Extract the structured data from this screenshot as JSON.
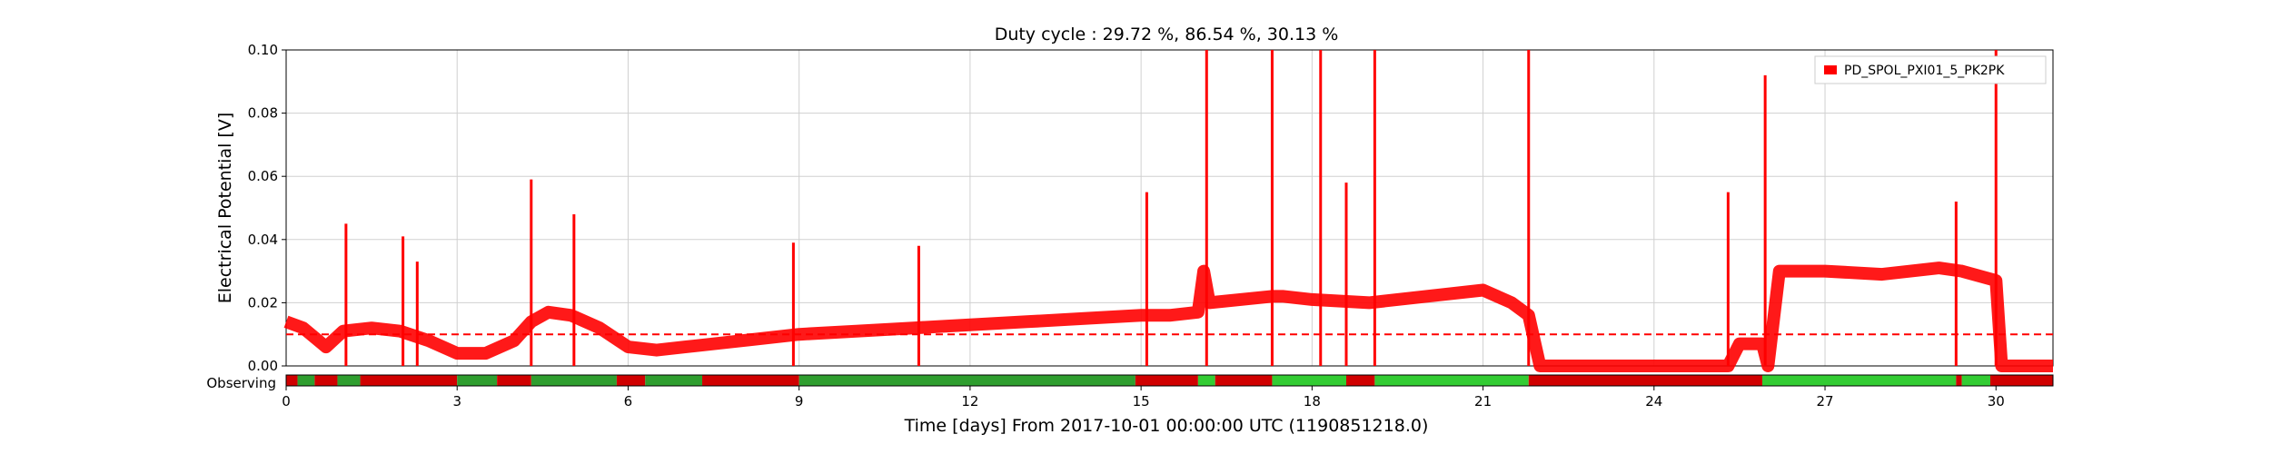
{
  "chart_data": {
    "type": "line",
    "title": "Duty cycle : 29.72 %, 86.54 %, 30.13 %",
    "xlabel": "Time [days] From 2017-10-01 00:00:00 UTC (1190851218.0)",
    "ylabel": "Electrical Potential [V]",
    "xlim": [
      0,
      31
    ],
    "ylim": [
      0,
      0.1
    ],
    "xticks": [
      "0",
      "3",
      "6",
      "9",
      "12",
      "15",
      "18",
      "21",
      "24",
      "27",
      "30"
    ],
    "yticks": [
      "0.00",
      "0.02",
      "0.04",
      "0.06",
      "0.08",
      "0.10"
    ],
    "grid": true,
    "legend_position": "top-right",
    "threshold": 0.01,
    "series": [
      {
        "name": "PD_SPOL_PXI01_5_PK2PK",
        "color": "#ff0000",
        "x": [
          0,
          0.3,
          0.7,
          1.0,
          1.5,
          2.0,
          2.5,
          3.0,
          3.5,
          4.0,
          4.3,
          4.6,
          5.0,
          5.5,
          6.0,
          6.5,
          7.0,
          8.0,
          9.0,
          10.0,
          11.0,
          12.0,
          13.0,
          14.0,
          15.0,
          15.5,
          16.0,
          16.1,
          16.2,
          17.3,
          17.5,
          18.0,
          19.0,
          20.0,
          21.0,
          21.5,
          21.8,
          22.0,
          24.0,
          25.3,
          25.5,
          25.9,
          26.0,
          26.2,
          27.0,
          28.0,
          29.0,
          29.4,
          30.0,
          30.1,
          31.0
        ],
        "y": [
          0.014,
          0.012,
          0.006,
          0.011,
          0.012,
          0.011,
          0.008,
          0.004,
          0.004,
          0.008,
          0.014,
          0.017,
          0.016,
          0.012,
          0.006,
          0.005,
          0.006,
          0.008,
          0.01,
          0.011,
          0.012,
          0.013,
          0.014,
          0.015,
          0.016,
          0.016,
          0.017,
          0.03,
          0.02,
          0.022,
          0.022,
          0.021,
          0.02,
          0.022,
          0.024,
          0.02,
          0.016,
          0.0,
          0.0,
          0.0,
          0.007,
          0.007,
          0.0,
          0.03,
          0.03,
          0.029,
          0.031,
          0.03,
          0.027,
          0.0,
          0.0
        ]
      }
    ],
    "spikes": [
      [
        1.05,
        0.045
      ],
      [
        2.05,
        0.041
      ],
      [
        2.3,
        0.033
      ],
      [
        4.3,
        0.059
      ],
      [
        5.05,
        0.048
      ],
      [
        8.9,
        0.039
      ],
      [
        11.1,
        0.038
      ],
      [
        15.1,
        0.055
      ],
      [
        16.15,
        0.1
      ],
      [
        17.3,
        0.1
      ],
      [
        18.15,
        0.1
      ],
      [
        18.6,
        0.058
      ],
      [
        19.1,
        0.1
      ],
      [
        21.8,
        0.1
      ],
      [
        25.3,
        0.055
      ],
      [
        25.95,
        0.092
      ],
      [
        29.3,
        0.052
      ],
      [
        30.0,
        0.1
      ]
    ],
    "state_bar": {
      "label": "Observing",
      "colors": {
        "active": "#2f9e2f",
        "observing": "#33cc33",
        "off": "#d00000"
      },
      "segments": [
        [
          0,
          0.2,
          "off"
        ],
        [
          0.2,
          0.5,
          "active"
        ],
        [
          0.5,
          0.9,
          "off"
        ],
        [
          0.9,
          1.3,
          "active"
        ],
        [
          1.3,
          3.0,
          "off"
        ],
        [
          3.0,
          3.7,
          "active"
        ],
        [
          3.7,
          4.3,
          "off"
        ],
        [
          4.3,
          5.8,
          "active"
        ],
        [
          5.8,
          6.3,
          "off"
        ],
        [
          6.3,
          7.3,
          "active"
        ],
        [
          7.3,
          9.0,
          "off"
        ],
        [
          9.0,
          14.9,
          "active"
        ],
        [
          14.9,
          16.0,
          "off"
        ],
        [
          16.0,
          16.3,
          "observing"
        ],
        [
          16.3,
          17.3,
          "off"
        ],
        [
          17.3,
          18.6,
          "observing"
        ],
        [
          18.6,
          19.1,
          "off"
        ],
        [
          19.1,
          21.8,
          "observing"
        ],
        [
          21.8,
          25.9,
          "off"
        ],
        [
          25.9,
          29.3,
          "observing"
        ],
        [
          29.3,
          29.4,
          "off"
        ],
        [
          29.4,
          29.9,
          "observing"
        ],
        [
          29.9,
          31.0,
          "off"
        ]
      ]
    }
  }
}
